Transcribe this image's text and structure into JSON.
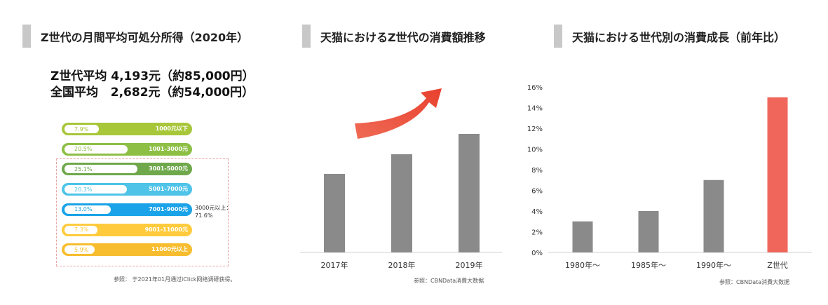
{
  "panel1": {
    "title": "Z世代の月間平均可処分所得（2020年）",
    "summary": [
      {
        "label": "Z世代平均",
        "value": "4,193元（約85,000円）"
      },
      {
        "label": "全国平均",
        "value": "2,682元（約54,000円）"
      }
    ],
    "note_3000": "3000元以上：71.6%",
    "source": "参照： 于2021年01月通过iClick网络调研获得。"
  },
  "panel2": {
    "title": "天猫におけるZ世代の消費額推移",
    "source": "参照：CBNData消費大数据"
  },
  "panel3": {
    "title": "天猫における世代別の消費成長（前年比）",
    "source": "参照：CBNData消費大数据"
  },
  "colors": {
    "gray_bar": "#8a8a8a",
    "highlight_bar": "#f0665a",
    "arrow": "#e8412e"
  },
  "chart_data": [
    {
      "type": "bar",
      "title": "Z世代の月間平均可処分所得（2020年）",
      "orientation": "horizontal",
      "categories": [
        "1000元以下",
        "1001-3000元",
        "3001-5000元",
        "5001-7000元",
        "7001-9000元",
        "9001-11000元",
        "11000元以上"
      ],
      "values": [
        7.9,
        20.5,
        25.1,
        20.3,
        13.0,
        7.3,
        5.9
      ],
      "value_labels": [
        "7.9%",
        "20.5%",
        "25.1%",
        "20.3%",
        "13.0%",
        "7.3%",
        "5.9%"
      ],
      "bar_colors": [
        "#a8c63a",
        "#8dbf45",
        "#6ea84a",
        "#4fc3e8",
        "#1aa3e8",
        "#ffcb3d",
        "#f7bd2e"
      ]
    },
    {
      "type": "bar",
      "title": "天猫におけるZ世代の消費額推移",
      "categories": [
        "2017年",
        "2018年",
        "2019年"
      ],
      "values": [
        112,
        140,
        169
      ],
      "ylim": [
        0,
        220
      ]
    },
    {
      "type": "bar",
      "title": "天猫における世代別の消費成長（前年比）",
      "categories": [
        "1980年～",
        "1985年～",
        "1990年～",
        "Z世代"
      ],
      "values": [
        3,
        4,
        7,
        15
      ],
      "ylim": [
        0,
        16
      ],
      "yticks": [
        "0%",
        "2%",
        "4%",
        "6%",
        "8%",
        "10%",
        "12%",
        "14%",
        "16%"
      ]
    }
  ]
}
